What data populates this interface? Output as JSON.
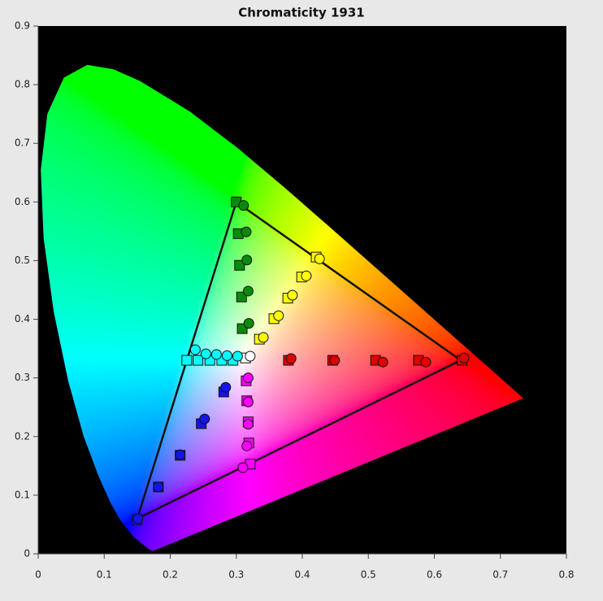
{
  "chart_data": {
    "type": "chromaticity",
    "title": "Chromaticity 1931",
    "xlim": [
      0,
      0.8
    ],
    "ylim": [
      0,
      0.9
    ],
    "xticks": [
      0,
      0.1,
      0.2,
      0.3,
      0.4,
      0.5,
      0.6,
      0.7,
      0.8
    ],
    "yticks": [
      0,
      0.1,
      0.2,
      0.3,
      0.4,
      0.5,
      0.6,
      0.7,
      0.8,
      0.9
    ],
    "background": "#000000",
    "locus": {
      "x": [
        0.1741,
        0.1689,
        0.1644,
        0.1566,
        0.144,
        0.1241,
        0.1096,
        0.0913,
        0.0687,
        0.0454,
        0.0235,
        0.0082,
        0.0039,
        0.0139,
        0.0389,
        0.0743,
        0.1142,
        0.1547,
        0.2296,
        0.3016,
        0.3731,
        0.4441,
        0.5125,
        0.5752,
        0.627,
        0.6915,
        0.719,
        0.7347
      ],
      "y": [
        0.005,
        0.0069,
        0.0109,
        0.0177,
        0.0297,
        0.0578,
        0.0868,
        0.1327,
        0.2007,
        0.295,
        0.4127,
        0.5384,
        0.6548,
        0.7502,
        0.812,
        0.8338,
        0.8262,
        0.8059,
        0.7543,
        0.6923,
        0.6245,
        0.5547,
        0.4866,
        0.4242,
        0.3725,
        0.3083,
        0.2809,
        0.2653
      ]
    },
    "gamut": {
      "x": [
        0.64,
        0.3,
        0.15
      ],
      "y": [
        0.33,
        0.6,
        0.06
      ],
      "color": "#111111"
    },
    "series": [
      {
        "marker": "square",
        "color": "#0a8a0a",
        "x": [
          0.3,
          0.303,
          0.305,
          0.308,
          0.309
        ],
        "y": [
          0.6,
          0.546,
          0.492,
          0.438,
          0.384
        ]
      },
      {
        "marker": "circle",
        "color": "#0a8a0a",
        "x": [
          0.311,
          0.315,
          0.316,
          0.318,
          0.319
        ],
        "y": [
          0.594,
          0.549,
          0.501,
          0.448,
          0.393
        ]
      },
      {
        "marker": "square",
        "color": "#ffff00",
        "x": [
          0.421,
          0.399,
          0.378,
          0.357,
          0.335
        ],
        "y": [
          0.506,
          0.472,
          0.436,
          0.401,
          0.366
        ]
      },
      {
        "marker": "circle",
        "color": "#ffff00",
        "x": [
          0.426,
          0.406,
          0.385,
          0.364,
          0.341
        ],
        "y": [
          0.503,
          0.474,
          0.441,
          0.406,
          0.369
        ]
      },
      {
        "marker": "square",
        "color": "#ffffff",
        "x": [
          0.314
        ],
        "y": [
          0.334
        ]
      },
      {
        "marker": "circle",
        "color": "#ffffff",
        "x": [
          0.321
        ],
        "y": [
          0.337
        ]
      },
      {
        "marker": "square",
        "color": "#e00000",
        "x": [
          0.379,
          0.446,
          0.511,
          0.576,
          0.642
        ],
        "y": [
          0.33,
          0.33,
          0.33,
          0.33,
          0.33
        ]
      },
      {
        "marker": "circle",
        "color": "#e00000",
        "x": [
          0.383,
          0.449,
          0.522,
          0.587,
          0.645
        ],
        "y": [
          0.333,
          0.33,
          0.327,
          0.327,
          0.334
        ]
      },
      {
        "marker": "square",
        "color": "#00ffff",
        "x": [
          0.225,
          0.242,
          0.26,
          0.278,
          0.295
        ],
        "y": [
          0.33,
          0.33,
          0.33,
          0.33,
          0.33
        ]
      },
      {
        "marker": "circle",
        "color": "#00ffff",
        "x": [
          0.238,
          0.254,
          0.27,
          0.286,
          0.302
        ],
        "y": [
          0.348,
          0.341,
          0.34,
          0.338,
          0.337
        ]
      },
      {
        "marker": "square",
        "color": "#1414e6",
        "x": [
          0.15,
          0.182,
          0.215,
          0.247,
          0.281
        ],
        "y": [
          0.058,
          0.114,
          0.168,
          0.222,
          0.276
        ]
      },
      {
        "marker": "circle",
        "color": "#1414e6",
        "x": [
          0.151,
          0.182,
          0.215,
          0.252,
          0.284
        ],
        "y": [
          0.06,
          0.114,
          0.169,
          0.23,
          0.284
        ]
      },
      {
        "marker": "square",
        "color": "#ff00ff",
        "x": [
          0.321,
          0.319,
          0.318,
          0.316,
          0.315
        ],
        "y": [
          0.153,
          0.189,
          0.225,
          0.261,
          0.295
        ]
      },
      {
        "marker": "circle",
        "color": "#ff00ff",
        "x": [
          0.31,
          0.316,
          0.318,
          0.318,
          0.318
        ],
        "y": [
          0.147,
          0.184,
          0.221,
          0.259,
          0.3
        ]
      }
    ]
  }
}
